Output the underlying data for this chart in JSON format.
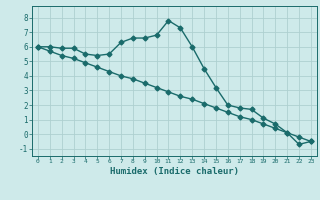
{
  "xlabel": "Humidex (Indice chaleur)",
  "bg_color": "#ceeaea",
  "grid_color": "#aed0d0",
  "line_color": "#1a6b6b",
  "line1_x": [
    0,
    1,
    2,
    3,
    4,
    5,
    6,
    7,
    8,
    9,
    10,
    11,
    12,
    13,
    14,
    15,
    16,
    17,
    18,
    19,
    20,
    21,
    22,
    23
  ],
  "line1_y": [
    6.0,
    6.0,
    5.9,
    5.9,
    5.5,
    5.4,
    5.5,
    6.3,
    6.6,
    6.6,
    6.8,
    7.8,
    7.3,
    6.0,
    4.5,
    3.2,
    2.0,
    1.8,
    1.7,
    1.1,
    0.7,
    0.1,
    -0.7,
    -0.5
  ],
  "line2_x": [
    0,
    1,
    2,
    3,
    4,
    5,
    6,
    7,
    8,
    9,
    10,
    11,
    12,
    13,
    14,
    15,
    16,
    17,
    18,
    19,
    20,
    21,
    22,
    23
  ],
  "line2_y": [
    6.0,
    5.7,
    5.4,
    5.2,
    4.9,
    4.6,
    4.3,
    4.0,
    3.8,
    3.5,
    3.2,
    2.9,
    2.6,
    2.4,
    2.1,
    1.8,
    1.5,
    1.2,
    1.0,
    0.7,
    0.4,
    0.1,
    -0.2,
    -0.5
  ],
  "ylim": [
    -1.5,
    8.8
  ],
  "xlim": [
    -0.5,
    23.5
  ],
  "yticks": [
    -1,
    0,
    1,
    2,
    3,
    4,
    5,
    6,
    7,
    8
  ],
  "xticks": [
    0,
    1,
    2,
    3,
    4,
    5,
    6,
    7,
    8,
    9,
    10,
    11,
    12,
    13,
    14,
    15,
    16,
    17,
    18,
    19,
    20,
    21,
    22,
    23
  ],
  "markersize": 2.5,
  "linewidth": 1.0
}
